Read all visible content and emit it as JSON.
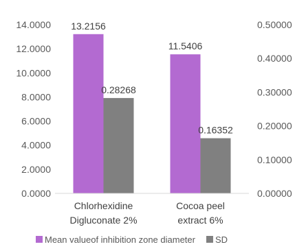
{
  "chart_data": {
    "type": "bar",
    "categories": [
      [
        "Chlorhexidine",
        "Digluconate 2%"
      ],
      [
        "Cocoa peel",
        "extract 6%"
      ]
    ],
    "series": [
      {
        "name": "Mean valueof inhibition zone diameter",
        "axis": "primary",
        "values": [
          13.2156,
          11.5406
        ],
        "labels": [
          "13.2156",
          "11.5406"
        ],
        "color": "#b36ad1"
      },
      {
        "name": "SD",
        "axis": "secondary",
        "values": [
          0.28268,
          0.16352
        ],
        "labels": [
          "0.28268",
          "0.16352"
        ],
        "color": "#808080"
      }
    ],
    "y_primary": {
      "range": [
        0,
        14
      ],
      "ticks": [
        "0.0000",
        "2.0000",
        "4.0000",
        "6.0000",
        "8.0000",
        "10.0000",
        "12.0000",
        "14.0000"
      ]
    },
    "y_secondary": {
      "range": [
        0,
        0.5
      ],
      "ticks": [
        "0.00000",
        "0.10000",
        "0.20000",
        "0.30000",
        "0.40000",
        "0.50000"
      ]
    },
    "grid": false,
    "legend_position": "bottom"
  }
}
